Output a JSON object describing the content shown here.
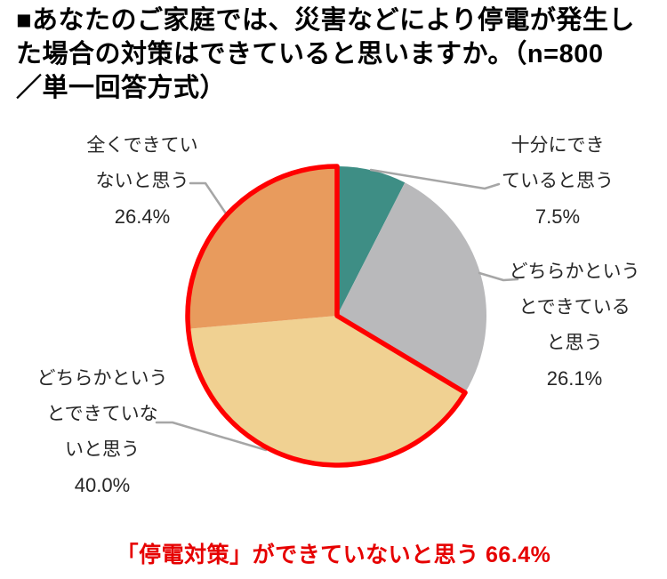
{
  "title": {
    "full": "■あなたのご家庭では、災害などにより停電が発生した場合の対策はできていると思いますか。（n=800／単一回答方式）",
    "lines": [
      "■あなたのご家庭では、災害などにより停電が発生し",
      "た場合の対策はできていると思いますか。（n=800",
      "／単一回答方式）"
    ]
  },
  "chart_data": {
    "type": "pie",
    "title": "あなたのご家庭では、災害などにより停電が発生した場合の対策はできていると思いますか。",
    "n": 800,
    "start_angle_deg": 0,
    "direction": "clockwise",
    "legend_position": "callout-labels",
    "slices": [
      {
        "label": "十分にできていると思う",
        "value": 7.5,
        "value_label": "7.5%",
        "label_lines": [
          "十分にでき",
          "ていると思う"
        ],
        "color": "#3e8e85"
      },
      {
        "label": "どちらかというとできていると思う",
        "value": 26.1,
        "value_label": "26.1%",
        "label_lines": [
          "どちらかという",
          "とできている",
          "と思う"
        ],
        "color": "#b9b9bb"
      },
      {
        "label": "どちらかというとできていないと思う",
        "value": 40.0,
        "value_label": "40.0%",
        "label_lines": [
          "どちらかという",
          "とできていな",
          "いと思う"
        ],
        "color": "#f0d192"
      },
      {
        "label": "全くできていないと思う",
        "value": 26.4,
        "value_label": "26.4%",
        "label_lines": [
          "全くできてい",
          "ないと思う"
        ],
        "color": "#e89b5d"
      }
    ],
    "highlight": {
      "slice_labels": [
        "どちらかというとできていないと思う",
        "全くできていないと思う"
      ],
      "combined_value": 66.4,
      "outline_color": "#ff0000"
    },
    "leader_line_color": "#a6a6a6"
  },
  "annotation": {
    "text": "「停電対策」ができていないと思う 66.4%",
    "color": "#e60000"
  }
}
